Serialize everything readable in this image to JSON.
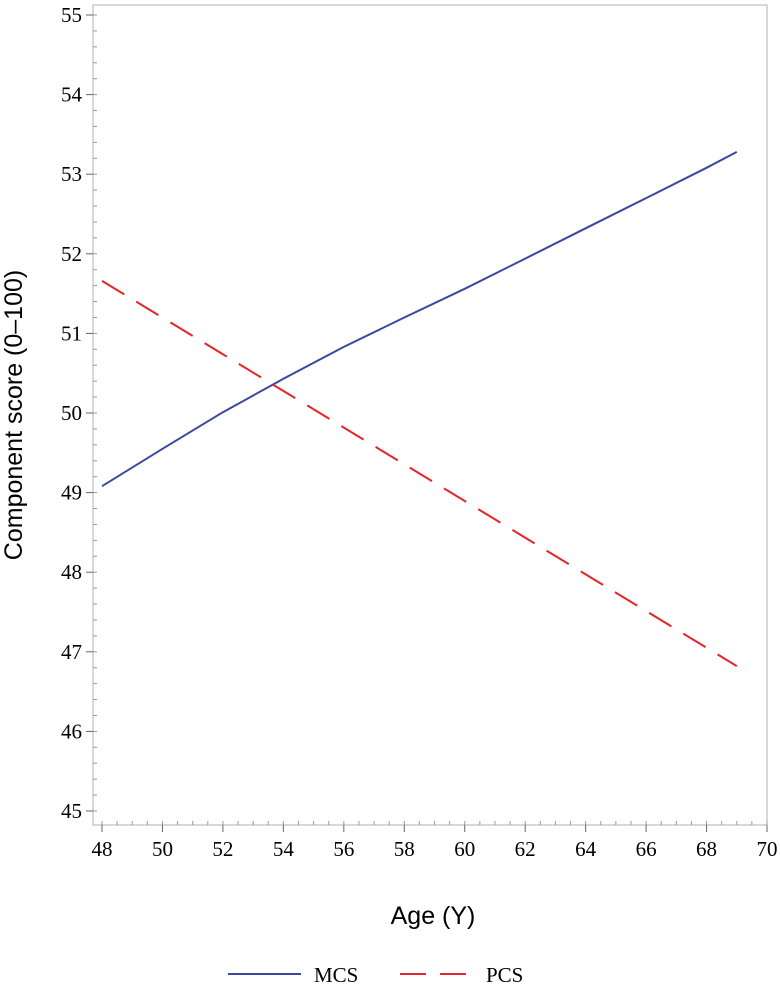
{
  "chart_data": {
    "type": "line",
    "title": "",
    "xlabel": "Age (Y)",
    "ylabel": "Component score (0–100)",
    "xlim": [
      48,
      70
    ],
    "ylim": [
      45,
      55
    ],
    "x_ticks": [
      48,
      50,
      52,
      54,
      56,
      58,
      60,
      62,
      64,
      66,
      68,
      70
    ],
    "y_ticks": [
      45,
      46,
      47,
      48,
      49,
      50,
      51,
      52,
      53,
      54,
      55
    ],
    "x_minor_step": 0.5,
    "y_minor_step": 0.2,
    "grid": false,
    "legend_position": "bottom-center",
    "series": [
      {
        "name": "MCS",
        "color": "#3b47a0",
        "dash": "solid",
        "x": [
          48,
          50,
          52,
          54,
          56,
          58,
          60,
          62,
          64,
          66,
          68,
          69
        ],
        "y": [
          49.08,
          49.55,
          50.01,
          50.43,
          50.83,
          51.2,
          51.56,
          51.94,
          52.32,
          52.7,
          53.08,
          53.28
        ]
      },
      {
        "name": "PCS",
        "color": "#e3262b",
        "dash": "dashed",
        "x": [
          48,
          69
        ],
        "y": [
          51.66,
          46.82
        ]
      }
    ]
  }
}
